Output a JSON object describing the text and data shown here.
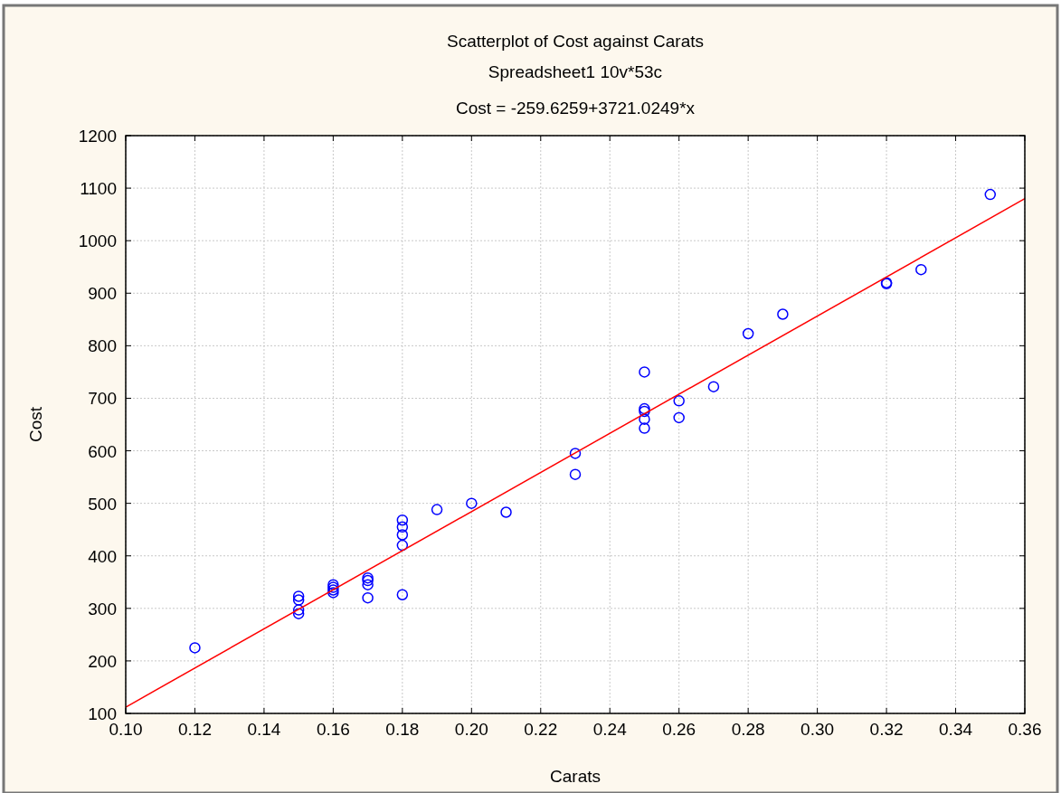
{
  "chart_data": {
    "type": "scatter",
    "title": "Scatterplot of Cost against Carats",
    "subtitle": "Spreadsheet1 10v*53c",
    "annotations": [
      "Cost = -259.6259+3721.0249*x"
    ],
    "xlabel": "Carats",
    "ylabel": "Cost",
    "xlim": [
      0.1,
      0.36
    ],
    "xticks": [
      {
        "value": 0.1,
        "label": "0.10"
      },
      0.12,
      0.14,
      0.16,
      0.18,
      {
        "value": 0.2,
        "label": "0.20"
      },
      0.22,
      0.24,
      0.26,
      0.28,
      {
        "value": 0.3,
        "label": "0.30"
      },
      0.32,
      0.34,
      0.36
    ],
    "ylim": [
      100,
      1200
    ],
    "yticks": [
      100,
      200,
      300,
      400,
      500,
      600,
      700,
      800,
      900,
      1000,
      1100,
      1200
    ],
    "grid": true,
    "marker": "circle",
    "series": [
      {
        "color": "#0000ff",
        "x": [
          0.12,
          0.15,
          0.15,
          0.15,
          0.15,
          0.16,
          0.16,
          0.16,
          0.16,
          0.17,
          0.17,
          0.17,
          0.17,
          0.18,
          0.18,
          0.18,
          0.18,
          0.18,
          0.19,
          0.2,
          0.21,
          0.23,
          0.23,
          0.25,
          0.25,
          0.25,
          0.25,
          0.25,
          0.26,
          0.26,
          0.27,
          0.28,
          0.29,
          0.32,
          0.32,
          0.33,
          0.35
        ],
        "values": [
          225,
          323,
          316,
          297,
          290,
          345,
          340,
          335,
          330,
          358,
          353,
          345,
          320,
          468,
          455,
          440,
          420,
          326,
          488,
          500,
          483,
          595,
          555,
          750,
          680,
          675,
          660,
          643,
          695,
          663,
          722,
          823,
          860,
          920,
          918,
          945,
          1088
        ]
      },
      {
        "type": "line",
        "color": "#ff0000",
        "x": [
          0.1,
          0.36
        ],
        "values": [
          112,
          1080
        ],
        "line_style": "solid",
        "marker": "none"
      }
    ]
  }
}
